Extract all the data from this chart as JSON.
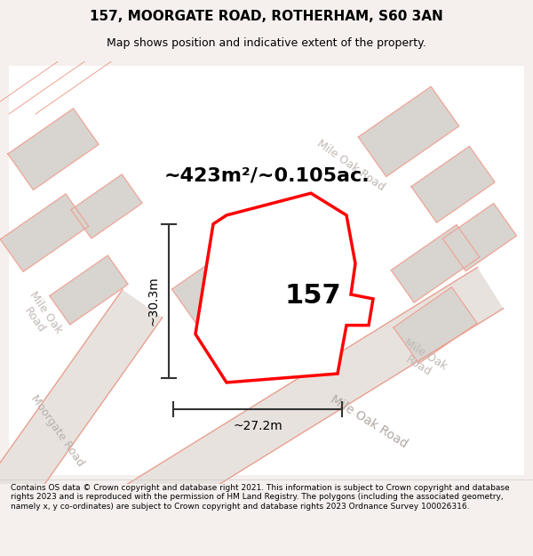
{
  "title": "157, MOORGATE ROAD, ROTHERHAM, S60 3AN",
  "subtitle": "Map shows position and indicative extent of the property.",
  "area_text": "~423m²/~0.105ac.",
  "number_label": "157",
  "dim_width": "~27.2m",
  "dim_height": "~30.3m",
  "road_label_1": "Mile Oak Road",
  "road_label_2": "Mile Oak Road",
  "road_label_3": "Mile Oak\nRoad",
  "road_label_moorgate": "Moorgate Road",
  "road_label_mile_oak": "Mile Oak Road",
  "footer_text": "Contains OS data © Crown copyright and database right 2021. This information is subject to Crown copyright and database rights 2023 and is reproduced with the permission of HM Land Registry. The polygons (including the associated geometry, namely x, y co-ordinates) are subject to Crown copyright and database rights 2023 Ordnance Survey 100026316.",
  "bg_color": "#f5f0ee",
  "map_bg": "#ffffff",
  "plot_color": "#ff0000",
  "plot_fill": "#ffffff",
  "road_bg_color": "#e8e0dc",
  "neighbor_color": "#d8d0cc",
  "road_line_color": "#e8d8d0",
  "dim_line_color": "#333333",
  "road_text_color": "#b0a8a4",
  "title_fontsize": 11,
  "subtitle_fontsize": 9,
  "area_fontsize": 16,
  "number_fontsize": 22,
  "dim_fontsize": 10,
  "road_fontsize": 10,
  "footer_fontsize": 6.5
}
